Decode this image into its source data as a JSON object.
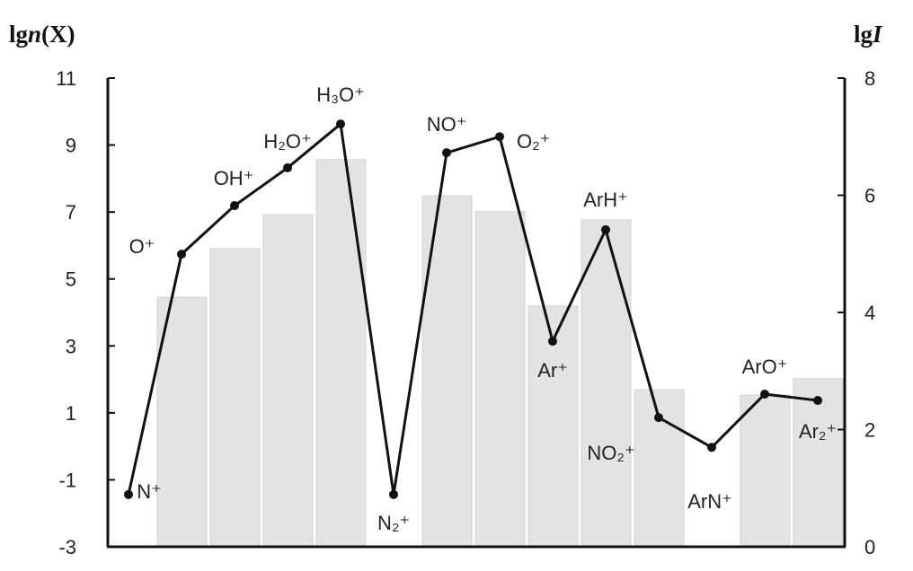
{
  "chart_data": {
    "type": "bar+line",
    "categories": [
      "N⁺",
      "O⁺",
      "OH⁺",
      "H₂O⁺",
      "H₃O⁺",
      "N₂⁺",
      "NO⁺",
      "O₂⁺",
      "Ar⁺",
      "ArH⁺",
      "NO₂⁺",
      "ArN⁺",
      "ArO⁺",
      "Ar₂⁺"
    ],
    "left_axis": {
      "label_prefix": "lg",
      "label_var": "n",
      "label_suffix": "(X)",
      "ylim": [
        -3,
        11
      ],
      "ticks": [
        -3,
        -1,
        1,
        3,
        5,
        7,
        9,
        11
      ]
    },
    "right_axis": {
      "label_prefix": "lg",
      "label_var": "I",
      "ylim": [
        0,
        8
      ],
      "ticks": [
        0,
        2,
        4,
        6,
        8
      ]
    },
    "series": [
      {
        "type": "bar",
        "axis": "right",
        "color": "#e3e3e3",
        "values": [
          null,
          4.26,
          5.09,
          5.67,
          6.61,
          null,
          5.99,
          5.72,
          4.11,
          5.58,
          2.68,
          null,
          2.59,
          2.87
        ]
      },
      {
        "type": "line",
        "axis": "left",
        "color": "#111111",
        "values": [
          -1.44,
          5.74,
          7.19,
          8.32,
          9.63,
          -1.44,
          8.77,
          9.25,
          3.14,
          6.47,
          0.86,
          -0.03,
          1.56,
          1.37
        ]
      }
    ],
    "grid": false,
    "legend": "none"
  }
}
